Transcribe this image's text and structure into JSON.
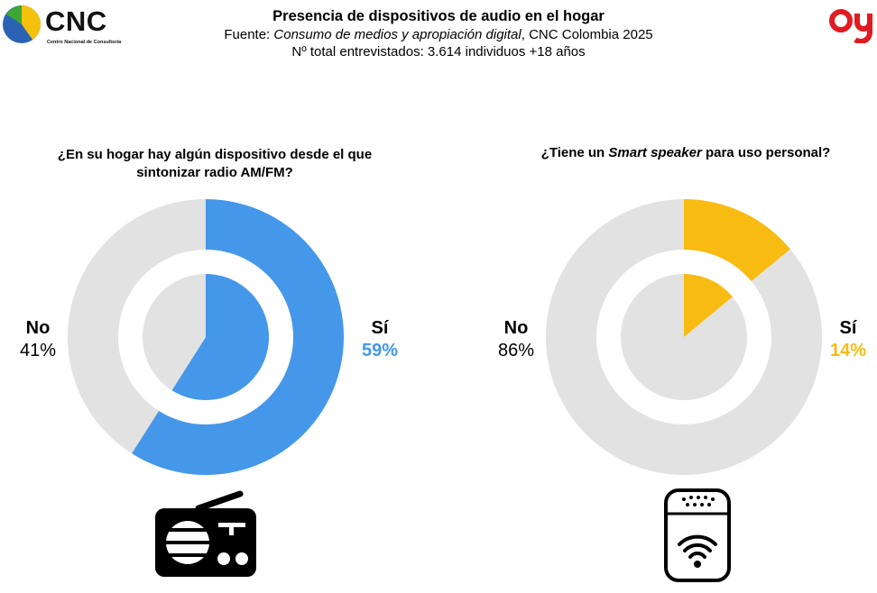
{
  "brand": {
    "left_logo_text": "CNC",
    "left_logo_subtext": "Centro Nacional de Consultoría"
  },
  "header": {
    "title": "Presencia de dispositivos de audio en el hogar",
    "source_prefix": "Fuente: ",
    "source_italic": "Consumo de medios y apropiación digital",
    "source_suffix": ", CNC Colombia 2025",
    "sample": "Nº total entrevistados: 3.614 individuos +18 años"
  },
  "colors": {
    "blue": "#4597ea",
    "yellow": "#f8bb12",
    "gray": "#e2e2e2"
  },
  "chart_data": [
    {
      "type": "pie",
      "title": "¿En su hogar hay algún dispositivo desde el que sintonizar radio AM/FM?",
      "categories": [
        "Sí",
        "No"
      ],
      "values": [
        59,
        41
      ],
      "value_labels": [
        "59%",
        "41%"
      ],
      "colors": [
        "#4597ea",
        "#e2e2e2"
      ],
      "icon": "radio-icon"
    },
    {
      "type": "pie",
      "title_parts": [
        "¿Tiene un ",
        "Smart speaker",
        " para uso personal?"
      ],
      "categories": [
        "Sí",
        "No"
      ],
      "values": [
        14,
        86
      ],
      "value_labels": [
        "14%",
        "86%"
      ],
      "colors": [
        "#f8bb12",
        "#e2e2e2"
      ],
      "icon": "smart-speaker-icon"
    }
  ]
}
